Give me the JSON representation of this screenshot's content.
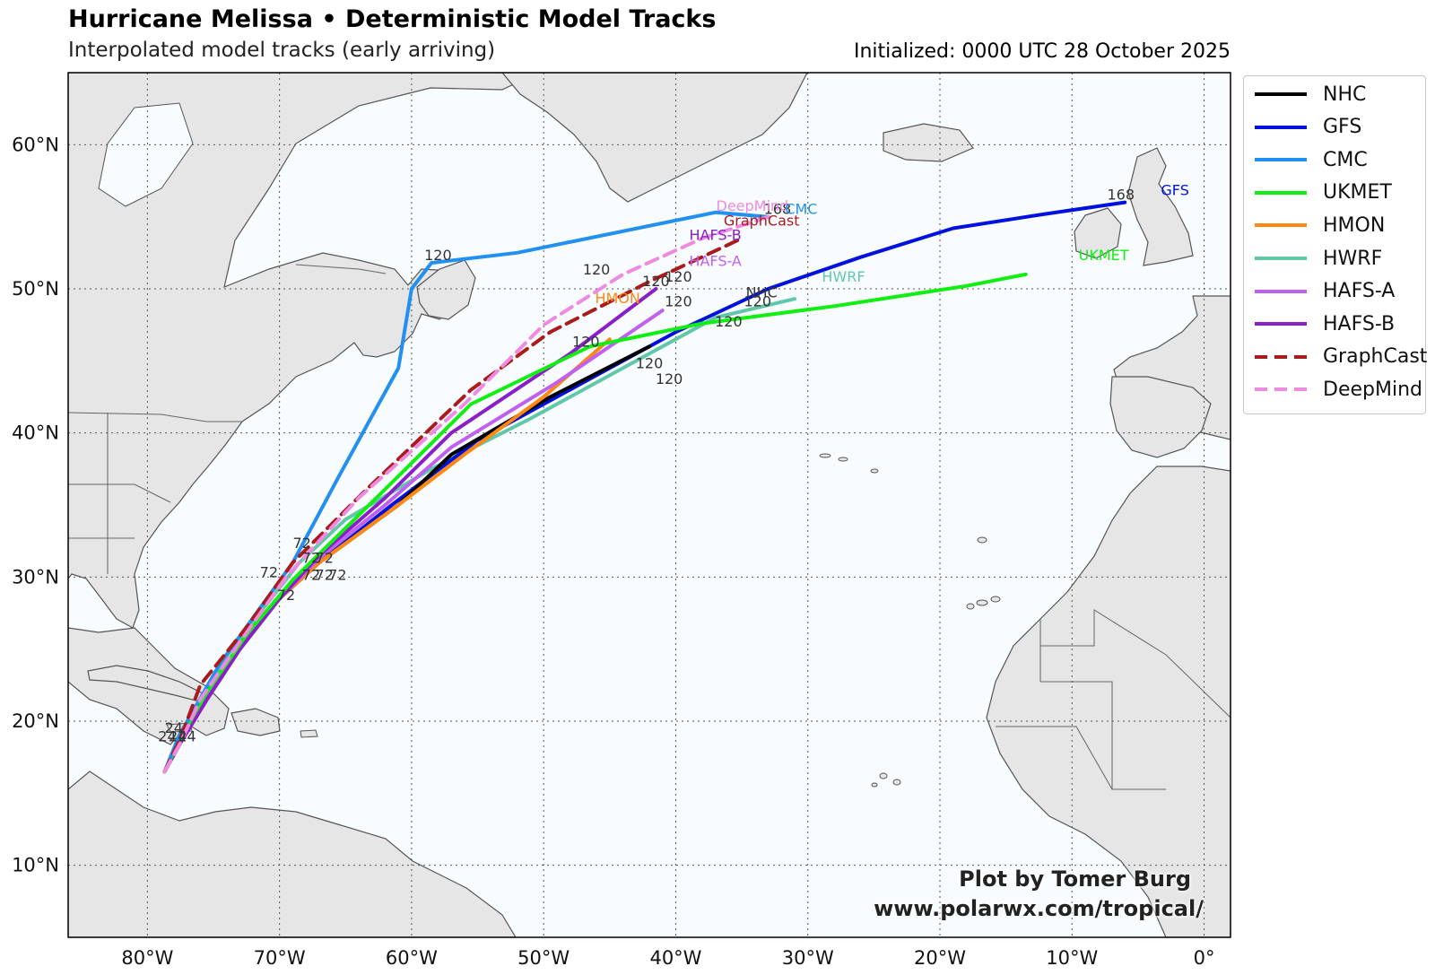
{
  "title": "Hurricane Melissa • Deterministic Model Tracks",
  "subtitle": "Interpolated model tracks (early arriving)",
  "initialized": "Initialized: 0000 UTC 28 October 2025",
  "credit": {
    "line1": "Plot by Tomer Burg",
    "line2": "www.polarwx.com/tropical/"
  },
  "map": {
    "lon_range": [
      -86,
      2
    ],
    "lat_range": [
      5,
      65
    ],
    "lon_ticks": [
      {
        "value": -80,
        "label": "80°W"
      },
      {
        "value": -70,
        "label": "70°W"
      },
      {
        "value": -60,
        "label": "60°W"
      },
      {
        "value": -50,
        "label": "50°W"
      },
      {
        "value": -40,
        "label": "40°W"
      },
      {
        "value": -30,
        "label": "30°W"
      },
      {
        "value": -20,
        "label": "20°W"
      },
      {
        "value": -10,
        "label": "10°W"
      },
      {
        "value": 0,
        "label": "0°"
      }
    ],
    "lat_ticks": [
      {
        "value": 10,
        "label": "10°N"
      },
      {
        "value": 20,
        "label": "20°N"
      },
      {
        "value": 30,
        "label": "30°N"
      },
      {
        "value": 40,
        "label": "40°N"
      },
      {
        "value": 50,
        "label": "50°N"
      },
      {
        "value": 60,
        "label": "60°N"
      }
    ],
    "gridlines": true,
    "colors": {
      "ocean": "#f8fcff",
      "land": "#e6e6e6",
      "coast": "#555555",
      "grid": "#555555"
    }
  },
  "legend": [
    {
      "name": "NHC",
      "color": "#000000",
      "dash": false
    },
    {
      "name": "GFS",
      "color": "#0011dd",
      "dash": false
    },
    {
      "name": "CMC",
      "color": "#2190f0",
      "dash": false
    },
    {
      "name": "UKMET",
      "color": "#11ee11",
      "dash": false
    },
    {
      "name": "HMON",
      "color": "#ff8811",
      "dash": false
    },
    {
      "name": "HWRF",
      "color": "#60c8a8",
      "dash": false
    },
    {
      "name": "HAFS-A",
      "color": "#c060f0",
      "dash": false
    },
    {
      "name": "HAFS-B",
      "color": "#8a1fc8",
      "dash": false
    },
    {
      "name": "GraphCast",
      "color": "#aa1c1c",
      "dash": true
    },
    {
      "name": "DeepMind",
      "color": "#ee8ae0",
      "dash": true
    }
  ],
  "tracks": [
    {
      "name": "HWRF",
      "color": "#60c8a8",
      "dash": false,
      "points": [
        [
          -78.7,
          16.5
        ],
        [
          -77.6,
          18.5
        ],
        [
          -76.2,
          21
        ],
        [
          -74,
          24.5
        ],
        [
          -71.5,
          27.5
        ],
        [
          -68.5,
          31
        ],
        [
          -65,
          34
        ],
        [
          -58.5,
          37.5
        ],
        [
          -51,
          41
        ],
        [
          -44,
          44.5
        ],
        [
          -37,
          48
        ],
        [
          -31,
          49.3
        ]
      ]
    },
    {
      "name": "GFS",
      "color": "#0011dd",
      "dash": false,
      "points": [
        [
          -78.7,
          16.5
        ],
        [
          -77.5,
          18.5
        ],
        [
          -75.5,
          21.5
        ],
        [
          -73,
          25
        ],
        [
          -70,
          28.5
        ],
        [
          -67,
          31
        ],
        [
          -61.5,
          35
        ],
        [
          -55,
          39.5
        ],
        [
          -47,
          43.5
        ],
        [
          -40,
          47
        ],
        [
          -33,
          50
        ],
        [
          -26,
          52.2
        ],
        [
          -19,
          54.2
        ],
        [
          -12,
          55.2
        ],
        [
          -6,
          56
        ]
      ]
    },
    {
      "name": "NHC",
      "color": "#000000",
      "dash": false,
      "points": [
        [
          -78.7,
          16.5
        ],
        [
          -77.5,
          18.5
        ],
        [
          -75.5,
          21.5
        ],
        [
          -73,
          25
        ],
        [
          -70,
          28.5
        ],
        [
          -67,
          31
        ],
        [
          -61,
          35
        ],
        [
          -57,
          38.5
        ],
        [
          -49.5,
          42.5
        ],
        [
          -42,
          46
        ]
      ]
    },
    {
      "name": "HMON",
      "color": "#ff8811",
      "dash": false,
      "points": [
        [
          -78.7,
          16.5
        ],
        [
          -77.5,
          18.5
        ],
        [
          -75.5,
          21.5
        ],
        [
          -73,
          25
        ],
        [
          -70,
          28.5
        ],
        [
          -67,
          31
        ],
        [
          -61,
          35
        ],
        [
          -56,
          38.5
        ],
        [
          -50,
          42.5
        ],
        [
          -45,
          46.5
        ]
      ]
    },
    {
      "name": "HAFS-A",
      "color": "#c060f0",
      "dash": false,
      "points": [
        [
          -78.7,
          16.5
        ],
        [
          -77.5,
          18.5
        ],
        [
          -75.5,
          21.5
        ],
        [
          -73,
          25
        ],
        [
          -70,
          28.5
        ],
        [
          -67,
          31.3
        ],
        [
          -62,
          35
        ],
        [
          -57,
          39
        ],
        [
          -49,
          43.5
        ],
        [
          -41,
          48.5
        ]
      ]
    },
    {
      "name": "HAFS-B",
      "color": "#8a1fc8",
      "dash": false,
      "points": [
        [
          -78.7,
          16.5
        ],
        [
          -77.5,
          18.5
        ],
        [
          -75.5,
          21.5
        ],
        [
          -73,
          25
        ],
        [
          -70,
          28.5
        ],
        [
          -67,
          31.5
        ],
        [
          -62,
          35.5
        ],
        [
          -57,
          40
        ],
        [
          -48,
          45.5
        ],
        [
          -41.5,
          50
        ]
      ]
    },
    {
      "name": "UKMET",
      "color": "#11ee11",
      "dash": false,
      "points": [
        [
          -78.7,
          16.5
        ],
        [
          -77.5,
          18.8
        ],
        [
          -75.5,
          22
        ],
        [
          -72.5,
          26
        ],
        [
          -69,
          29.8
        ],
        [
          -66,
          32.5
        ],
        [
          -61,
          37
        ],
        [
          -55.5,
          42
        ],
        [
          -46.5,
          46
        ],
        [
          -38,
          47.6
        ],
        [
          -28,
          48.8
        ],
        [
          -18,
          50.2
        ],
        [
          -13.5,
          51
        ]
      ]
    },
    {
      "name": "CMC",
      "color": "#2190f0",
      "dash": false,
      "points": [
        [
          -78.7,
          16.5
        ],
        [
          -77.6,
          19
        ],
        [
          -74.5,
          24
        ],
        [
          -69,
          31
        ],
        [
          -65.5,
          37
        ],
        [
          -61,
          44.5
        ],
        [
          -60,
          50
        ],
        [
          -58.5,
          51.8
        ],
        [
          -52,
          52.5
        ],
        [
          -37,
          55.3
        ],
        [
          -33,
          55
        ]
      ]
    },
    {
      "name": "GraphCast",
      "color": "#aa1c1c",
      "dash": true,
      "points": [
        [
          -78.7,
          16.5
        ],
        [
          -77.5,
          18.8
        ],
        [
          -76,
          22.5
        ],
        [
          -72.5,
          26.5
        ],
        [
          -69,
          31
        ],
        [
          -63.5,
          36
        ],
        [
          -55.5,
          43
        ],
        [
          -49.5,
          47
        ],
        [
          -42,
          50.5
        ],
        [
          -35,
          53.5
        ]
      ]
    },
    {
      "name": "DeepMind",
      "color": "#ee8ae0",
      "dash": true,
      "points": [
        [
          -78.7,
          16.5
        ],
        [
          -77.5,
          18.5
        ],
        [
          -76,
          21.5
        ],
        [
          -73,
          25.5
        ],
        [
          -69.5,
          30
        ],
        [
          -64,
          35.5
        ],
        [
          -56,
          42
        ],
        [
          -50,
          47.5
        ],
        [
          -44,
          51
        ],
        [
          -38,
          53.5
        ],
        [
          -33,
          55
        ]
      ]
    }
  ],
  "hour_labels": [
    {
      "text": "24",
      "color": "#333333",
      "lon": -78.5,
      "lat": 18.6
    },
    {
      "text": "24",
      "color": "#333333",
      "lon": -77.7,
      "lat": 18.6
    },
    {
      "text": "24",
      "color": "#333333",
      "lon": -77.0,
      "lat": 18.6
    },
    {
      "text": "24",
      "color": "#333333",
      "lon": -78.0,
      "lat": 19.2
    },
    {
      "text": "72",
      "color": "#333333",
      "lon": -70.8,
      "lat": 30.0
    },
    {
      "text": "72",
      "color": "#333333",
      "lon": -68.3,
      "lat": 32.0
    },
    {
      "text": "72",
      "color": "#333333",
      "lon": -67.6,
      "lat": 31.0
    },
    {
      "text": "72",
      "color": "#333333",
      "lon": -66.6,
      "lat": 31.0
    },
    {
      "text": "72",
      "color": "#333333",
      "lon": -67.6,
      "lat": 29.8
    },
    {
      "text": "72",
      "color": "#333333",
      "lon": -66.6,
      "lat": 29.8
    },
    {
      "text": "72",
      "color": "#333333",
      "lon": -65.6,
      "lat": 29.8
    },
    {
      "text": "72",
      "color": "#333333",
      "lon": -69.5,
      "lat": 28.4
    },
    {
      "text": "120",
      "color": "#333333",
      "lon": -58.0,
      "lat": 52.0
    },
    {
      "text": "120",
      "color": "#333333",
      "lon": -46.0,
      "lat": 51.0
    },
    {
      "text": "120",
      "color": "#333333",
      "lon": -41.5,
      "lat": 50.2
    },
    {
      "text": "120",
      "color": "#333333",
      "lon": -39.8,
      "lat": 50.5
    },
    {
      "text": "120",
      "color": "#333333",
      "lon": -39.8,
      "lat": 48.8
    },
    {
      "text": "120",
      "color": "#333333",
      "lon": -46.8,
      "lat": 46.0
    },
    {
      "text": "120",
      "color": "#333333",
      "lon": -36.0,
      "lat": 47.4
    },
    {
      "text": "120",
      "color": "#333333",
      "lon": -33.8,
      "lat": 48.8
    },
    {
      "text": "120",
      "color": "#333333",
      "lon": -42.0,
      "lat": 44.5
    },
    {
      "text": "120",
      "color": "#333333",
      "lon": -40.5,
      "lat": 43.4
    },
    {
      "text": "168",
      "color": "#333333",
      "lon": -32.3,
      "lat": 55.2
    },
    {
      "text": "168",
      "color": "#333333",
      "lon": -6.3,
      "lat": 56.2
    }
  ],
  "end_labels": [
    {
      "text": "DeepMind",
      "color": "#ee8ae0",
      "lon": -34.2,
      "lat": 55.4
    },
    {
      "text": "GraphCast",
      "color": "#aa1c1c",
      "lon": -33.5,
      "lat": 54.4
    },
    {
      "text": "CMC",
      "color": "#2190f0",
      "lon": -30.5,
      "lat": 55.2
    },
    {
      "text": "HAFS-B",
      "color": "#8a1fc8",
      "lon": -37.0,
      "lat": 53.4
    },
    {
      "text": "HAFS-A",
      "color": "#c060f0",
      "lon": -37.0,
      "lat": 51.6
    },
    {
      "text": "HWRF",
      "color": "#60c8a8",
      "lon": -27.3,
      "lat": 50.5
    },
    {
      "text": "HMON",
      "color": "#ff8811",
      "lon": -44.4,
      "lat": 49.0
    },
    {
      "text": "NHC",
      "color": "#333333",
      "lon": -33.5,
      "lat": 49.4
    },
    {
      "text": "GFS",
      "color": "#0011dd",
      "lon": -2.2,
      "lat": 56.5
    },
    {
      "text": "UKMET",
      "color": "#11ee11",
      "lon": -7.6,
      "lat": 52.0
    }
  ]
}
